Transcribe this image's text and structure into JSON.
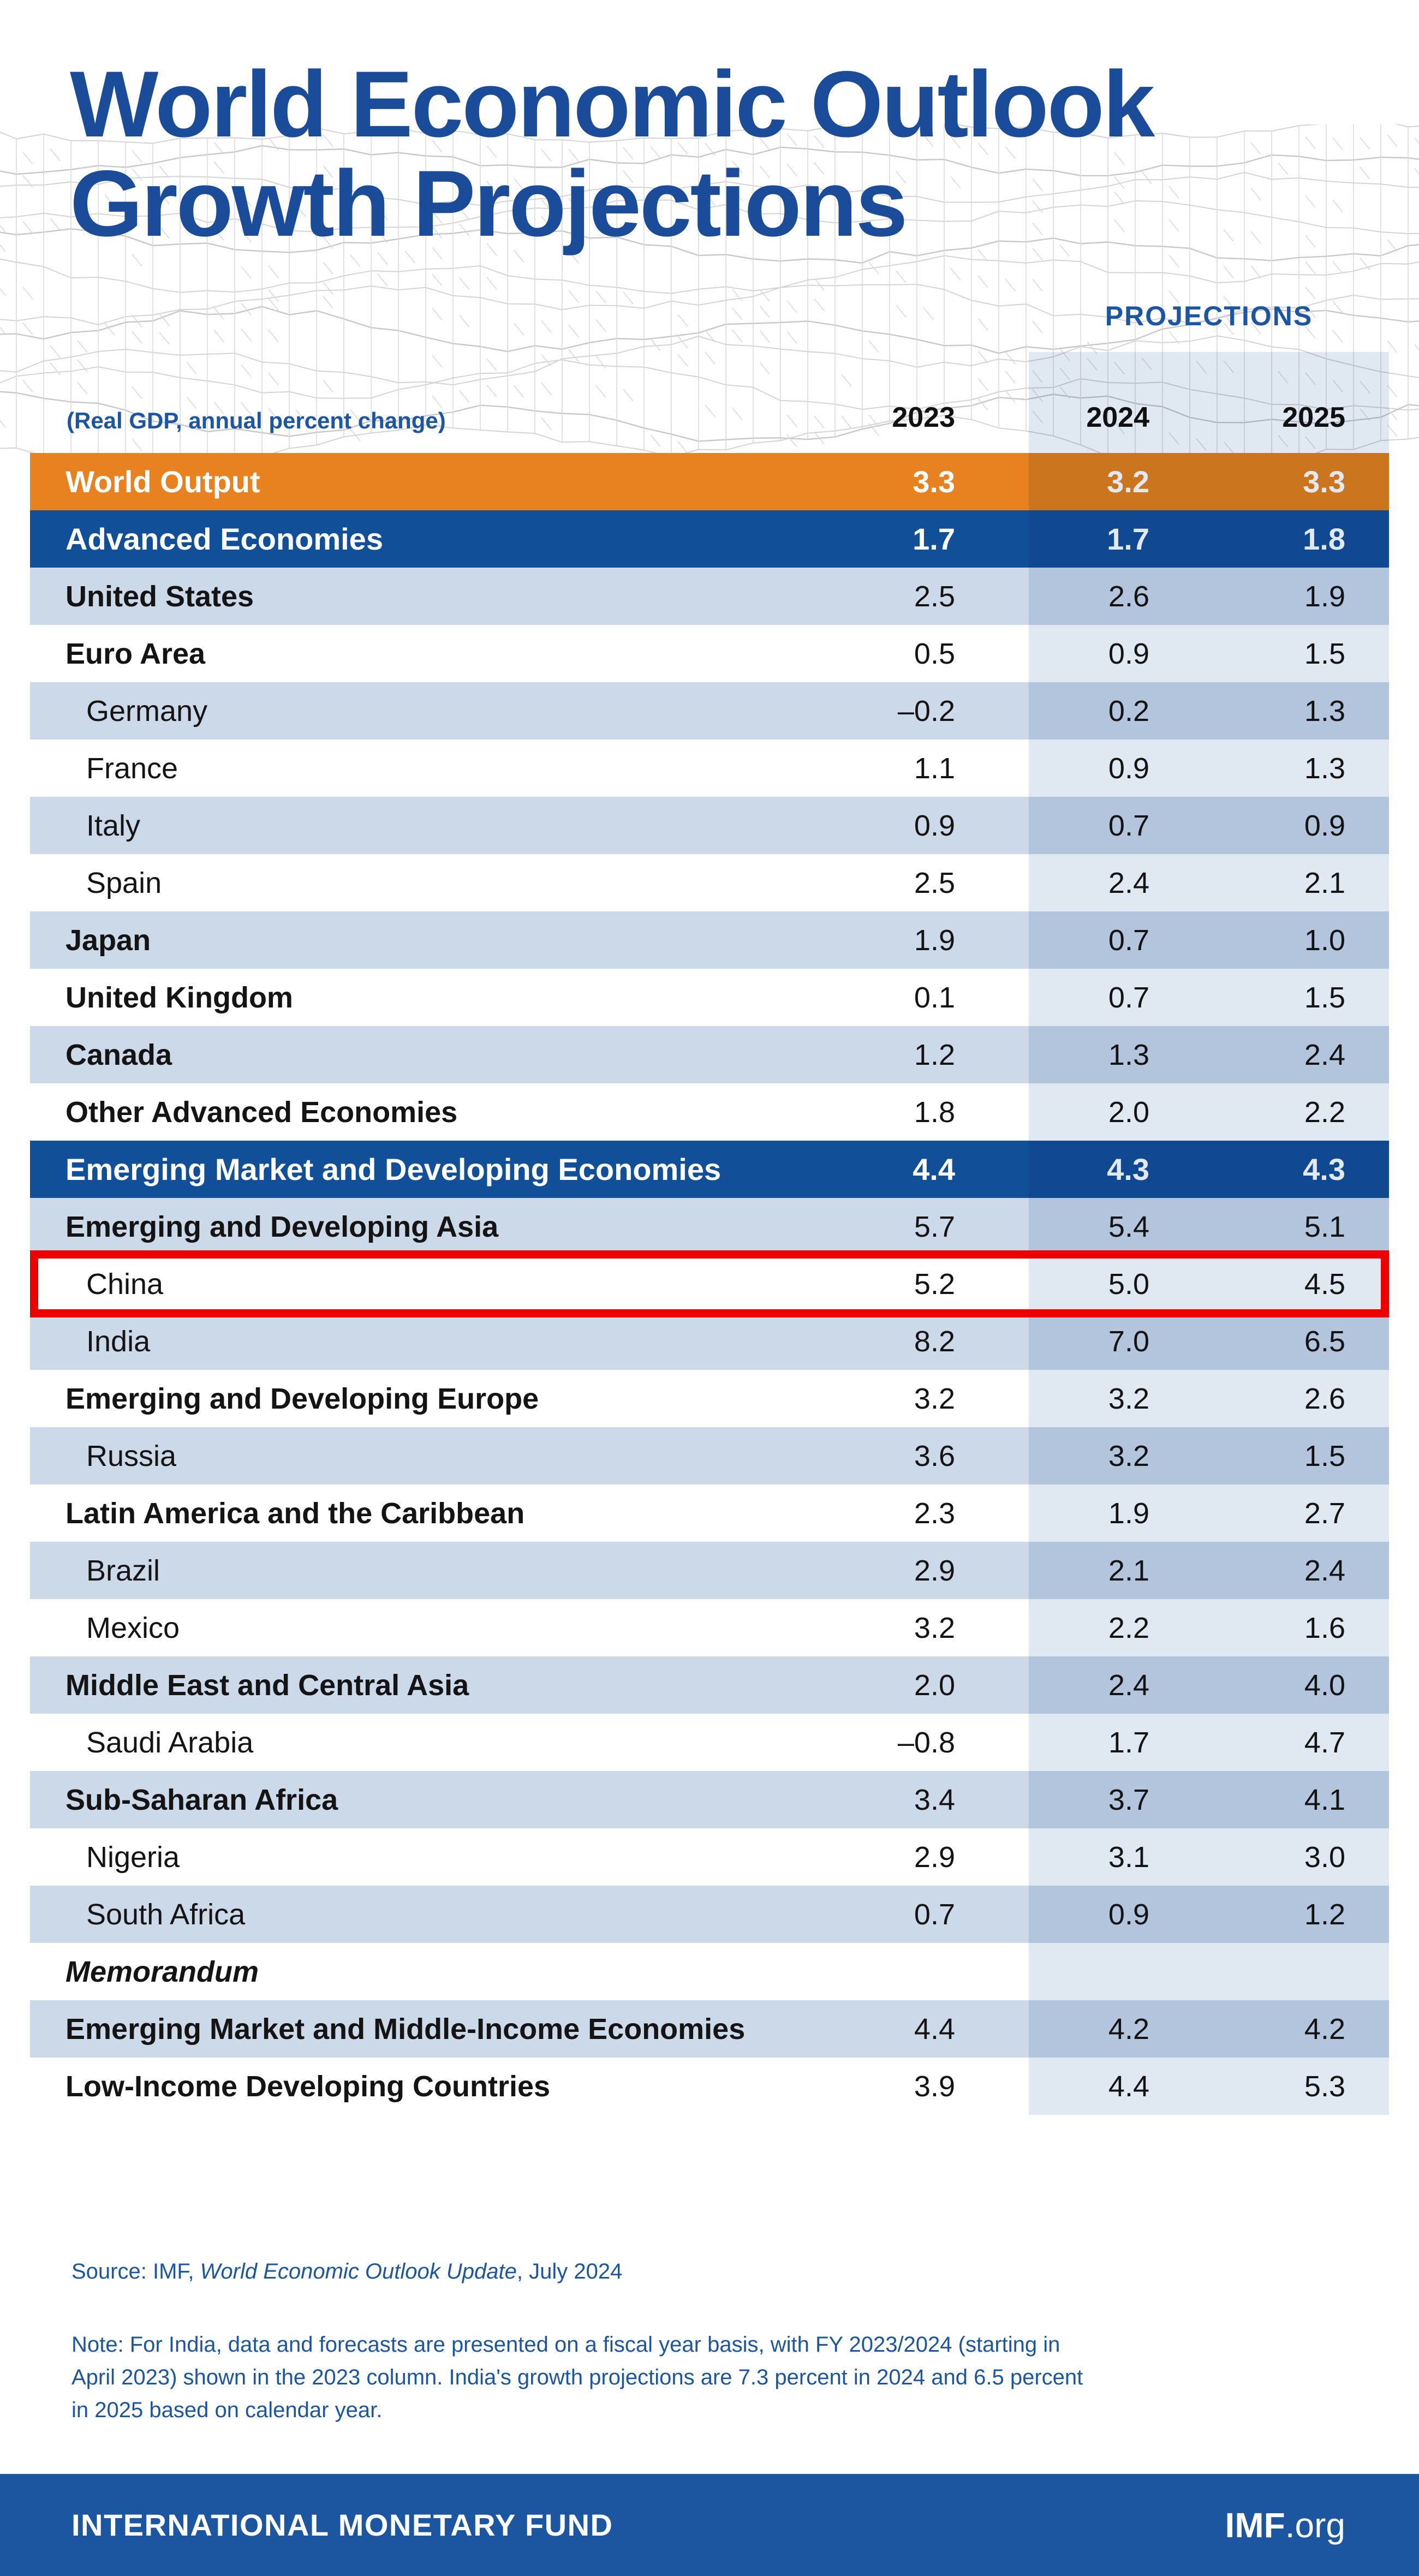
{
  "title": {
    "line1": "World Economic Outlook",
    "line2": "Growth Projections"
  },
  "header": {
    "projections_label": "PROJECTIONS",
    "subtitle": "(Real GDP, annual percent change)",
    "years": [
      "2023",
      "2024",
      "2025"
    ]
  },
  "table": {
    "rows": [
      {
        "label": "World Output",
        "values": [
          "3.3",
          "3.2",
          "3.3"
        ],
        "style": "orange"
      },
      {
        "label": "Advanced Economies",
        "values": [
          "1.7",
          "1.7",
          "1.8"
        ],
        "style": "header"
      },
      {
        "label": "United States",
        "values": [
          "2.5",
          "2.6",
          "1.9"
        ],
        "style": "lightblue",
        "bold": true
      },
      {
        "label": "Euro Area",
        "values": [
          "0.5",
          "0.9",
          "1.5"
        ],
        "style": "white",
        "bold": true
      },
      {
        "label": "Germany",
        "values": [
          "–0.2",
          "0.2",
          "1.3"
        ],
        "style": "lightblue",
        "indent": true
      },
      {
        "label": "France",
        "values": [
          "1.1",
          "0.9",
          "1.3"
        ],
        "style": "white",
        "indent": true
      },
      {
        "label": "Italy",
        "values": [
          "0.9",
          "0.7",
          "0.9"
        ],
        "style": "lightblue",
        "indent": true
      },
      {
        "label": "Spain",
        "values": [
          "2.5",
          "2.4",
          "2.1"
        ],
        "style": "white",
        "indent": true
      },
      {
        "label": "Japan",
        "values": [
          "1.9",
          "0.7",
          "1.0"
        ],
        "style": "lightblue",
        "bold": true
      },
      {
        "label": "United Kingdom",
        "values": [
          "0.1",
          "0.7",
          "1.5"
        ],
        "style": "white",
        "bold": true
      },
      {
        "label": "Canada",
        "values": [
          "1.2",
          "1.3",
          "2.4"
        ],
        "style": "lightblue",
        "bold": true
      },
      {
        "label": "Other Advanced Economies",
        "values": [
          "1.8",
          "2.0",
          "2.2"
        ],
        "style": "white",
        "bold": true
      },
      {
        "label": "Emerging Market and Developing Economies",
        "values": [
          "4.4",
          "4.3",
          "4.3"
        ],
        "style": "header"
      },
      {
        "label": "Emerging and Developing Asia",
        "values": [
          "5.7",
          "5.4",
          "5.1"
        ],
        "style": "lightblue",
        "bold": true
      },
      {
        "label": "China",
        "values": [
          "5.2",
          "5.0",
          "4.5"
        ],
        "style": "white",
        "indent": true,
        "highlight": true
      },
      {
        "label": "India",
        "values": [
          "8.2",
          "7.0",
          "6.5"
        ],
        "style": "lightblue",
        "indent": true
      },
      {
        "label": "Emerging and Developing Europe",
        "values": [
          "3.2",
          "3.2",
          "2.6"
        ],
        "style": "white",
        "bold": true
      },
      {
        "label": "Russia",
        "values": [
          "3.6",
          "3.2",
          "1.5"
        ],
        "style": "lightblue",
        "indent": true
      },
      {
        "label": "Latin America and the Caribbean",
        "values": [
          "2.3",
          "1.9",
          "2.7"
        ],
        "style": "white",
        "bold": true
      },
      {
        "label": "Brazil",
        "values": [
          "2.9",
          "2.1",
          "2.4"
        ],
        "style": "lightblue",
        "indent": true
      },
      {
        "label": "Mexico",
        "values": [
          "3.2",
          "2.2",
          "1.6"
        ],
        "style": "white",
        "indent": true
      },
      {
        "label": "Middle East and Central Asia",
        "values": [
          "2.0",
          "2.4",
          "4.0"
        ],
        "style": "lightblue",
        "bold": true
      },
      {
        "label": "Saudi Arabia",
        "values": [
          "–0.8",
          "1.7",
          "4.7"
        ],
        "style": "white",
        "indent": true
      },
      {
        "label": "Sub-Saharan Africa",
        "values": [
          "3.4",
          "3.7",
          "4.1"
        ],
        "style": "lightblue",
        "bold": true
      },
      {
        "label": "Nigeria",
        "values": [
          "2.9",
          "3.1",
          "3.0"
        ],
        "style": "white",
        "indent": true
      },
      {
        "label": "South Africa",
        "values": [
          "0.7",
          "0.9",
          "1.2"
        ],
        "style": "lightblue",
        "indent": true
      },
      {
        "label": "Memorandum",
        "values": [
          "",
          "",
          ""
        ],
        "style": "white",
        "memo": true
      },
      {
        "label": "Emerging Market and Middle-Income Economies",
        "values": [
          "4.4",
          "4.2",
          "4.2"
        ],
        "style": "lightblue",
        "bold": true
      },
      {
        "label": "Low-Income Developing Countries",
        "values": [
          "3.9",
          "4.4",
          "5.3"
        ],
        "style": "white",
        "bold": true
      }
    ]
  },
  "footnotes": {
    "source": {
      "prefix": "Source: IMF, ",
      "italic": "World Economic Outlook Update",
      "suffix": ", July 2024"
    },
    "note_lines": [
      "Note: For India, data and forecasts are presented on a fiscal year basis, with FY 2023/2024 (starting in",
      "April 2023) shown in the 2023 column. India's growth projections are 7.3 percent in 2024 and 6.5 percent",
      "in 2025 based on calendar year."
    ]
  },
  "footer": {
    "org": "INTERNATIONAL MONETARY FUND",
    "site_bold": "IMF",
    "site_rest": ".org"
  },
  "colors": {
    "title_blue": "#1A4C99",
    "header_row_blue": "#124F99",
    "orange": "#E8811F",
    "light_blue_row": "#CBD9E9",
    "band_overlay": "#E0E8F2",
    "highlight_red": "#EE0000",
    "footer_blue": "#1C55A0",
    "note_blue": "#1C55A0"
  },
  "chart_data": {
    "type": "table",
    "title": "World Economic Outlook Growth Projections",
    "subtitle": "(Real GDP, annual percent change)",
    "source": "IMF, World Economic Outlook Update, July 2024",
    "columns": [
      "2023",
      "2024",
      "2025"
    ],
    "projection_columns": [
      "2024",
      "2025"
    ],
    "highlighted_row": "China",
    "rows": [
      {
        "label": "World Output",
        "values": [
          3.3,
          3.2,
          3.3
        ],
        "group": "total"
      },
      {
        "label": "Advanced Economies",
        "values": [
          1.7,
          1.7,
          1.8
        ],
        "group": "section"
      },
      {
        "label": "United States",
        "values": [
          2.5,
          2.6,
          1.9
        ]
      },
      {
        "label": "Euro Area",
        "values": [
          0.5,
          0.9,
          1.5
        ]
      },
      {
        "label": "Germany",
        "values": [
          -0.2,
          0.2,
          1.3
        ]
      },
      {
        "label": "France",
        "values": [
          1.1,
          0.9,
          1.3
        ]
      },
      {
        "label": "Italy",
        "values": [
          0.9,
          0.7,
          0.9
        ]
      },
      {
        "label": "Spain",
        "values": [
          2.5,
          2.4,
          2.1
        ]
      },
      {
        "label": "Japan",
        "values": [
          1.9,
          0.7,
          1.0
        ]
      },
      {
        "label": "United Kingdom",
        "values": [
          0.1,
          0.7,
          1.5
        ]
      },
      {
        "label": "Canada",
        "values": [
          1.2,
          1.3,
          2.4
        ]
      },
      {
        "label": "Other Advanced Economies",
        "values": [
          1.8,
          2.0,
          2.2
        ]
      },
      {
        "label": "Emerging Market and Developing Economies",
        "values": [
          4.4,
          4.3,
          4.3
        ],
        "group": "section"
      },
      {
        "label": "Emerging and Developing Asia",
        "values": [
          5.7,
          5.4,
          5.1
        ]
      },
      {
        "label": "China",
        "values": [
          5.2,
          5.0,
          4.5
        ]
      },
      {
        "label": "India",
        "values": [
          8.2,
          7.0,
          6.5
        ]
      },
      {
        "label": "Emerging and Developing Europe",
        "values": [
          3.2,
          3.2,
          2.6
        ]
      },
      {
        "label": "Russia",
        "values": [
          3.6,
          3.2,
          1.5
        ]
      },
      {
        "label": "Latin America and the Caribbean",
        "values": [
          2.3,
          1.9,
          2.7
        ]
      },
      {
        "label": "Brazil",
        "values": [
          2.9,
          2.1,
          2.4
        ]
      },
      {
        "label": "Mexico",
        "values": [
          3.2,
          2.2,
          1.6
        ]
      },
      {
        "label": "Middle East and Central Asia",
        "values": [
          2.0,
          2.4,
          4.0
        ]
      },
      {
        "label": "Saudi Arabia",
        "values": [
          -0.8,
          1.7,
          4.7
        ]
      },
      {
        "label": "Sub-Saharan Africa",
        "values": [
          3.4,
          3.7,
          4.1
        ]
      },
      {
        "label": "Nigeria",
        "values": [
          2.9,
          3.1,
          3.0
        ]
      },
      {
        "label": "South Africa",
        "values": [
          0.7,
          0.9,
          1.2
        ]
      },
      {
        "label": "Memorandum",
        "values": [
          null,
          null,
          null
        ],
        "group": "memo-heading"
      },
      {
        "label": "Emerging Market and Middle-Income Economies",
        "values": [
          4.4,
          4.2,
          4.2
        ]
      },
      {
        "label": "Low-Income Developing Countries",
        "values": [
          3.9,
          4.4,
          5.3
        ]
      }
    ]
  }
}
